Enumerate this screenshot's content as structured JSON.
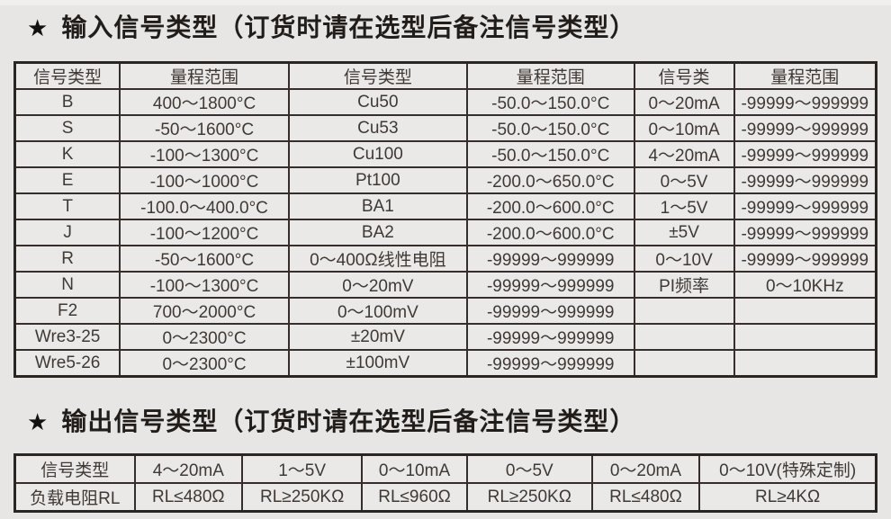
{
  "theme": {
    "page_background": "#e8e6e4",
    "cell_background": "#ebe9e8",
    "border_color": "#352e2b",
    "title_color": "#211d1b",
    "text_color": "#3f3935"
  },
  "input_section": {
    "star": "★",
    "title": "输入信号类型（订货时请在选型后备注信号类型）",
    "table": {
      "headers": [
        "信号类型",
        "量程范围",
        "信号类型",
        "量程范围",
        "信号类",
        "量程范围"
      ],
      "rows": [
        [
          "B",
          "400～1800°C",
          "Cu50",
          "-50.0～150.0°C",
          "0～20mA",
          "-99999～999999"
        ],
        [
          "S",
          "-50～1600°C",
          "Cu53",
          "-50.0～150.0°C",
          "0～10mA",
          "-99999～999999"
        ],
        [
          "K",
          "-100～1300°C",
          "Cu100",
          "-50.0～150.0°C",
          "4～20mA",
          "-99999～999999"
        ],
        [
          "E",
          "-100～1000°C",
          "Pt100",
          "-200.0～650.0°C",
          "0～5V",
          "-99999～999999"
        ],
        [
          "T",
          "-100.0～400.0°C",
          "BA1",
          "-200.0～600.0°C",
          "1～5V",
          "-99999～999999"
        ],
        [
          "J",
          "-100～1200°C",
          "BA2",
          "-200.0～600.0°C",
          "±5V",
          "-99999～999999"
        ],
        [
          "R",
          "-50～1600°C",
          "0～400Ω线性电阻",
          "-99999～999999",
          "0～10V",
          "-99999～999999"
        ],
        [
          "N",
          "-100～1300°C",
          "0～20mV",
          "-99999～999999",
          "PI频率",
          "0～10KHz"
        ],
        [
          "F2",
          "700～2000°C",
          "0～100mV",
          "-99999～999999",
          "",
          ""
        ],
        [
          "Wre3-25",
          "0～2300°C",
          "±20mV",
          "-99999～999999",
          "",
          ""
        ],
        [
          "Wre5-26",
          "0～2300°C",
          "±100mV",
          "-99999～999999",
          "",
          ""
        ]
      ]
    }
  },
  "output_section": {
    "star": "★",
    "title": "输出信号类型（订货时请在选型后备注信号类型）",
    "table": {
      "rows": [
        [
          "信号类型",
          "4～20mA",
          "1～5V",
          "0～10mA",
          "0～5V",
          "0～20mA",
          "0～10V(特殊定制)"
        ],
        [
          "负载电阻RL",
          "RL≤480Ω",
          "RL≥250KΩ",
          "RL≤960Ω",
          "RL≥250KΩ",
          "RL≤480Ω",
          "RL≥4KΩ"
        ]
      ]
    }
  }
}
